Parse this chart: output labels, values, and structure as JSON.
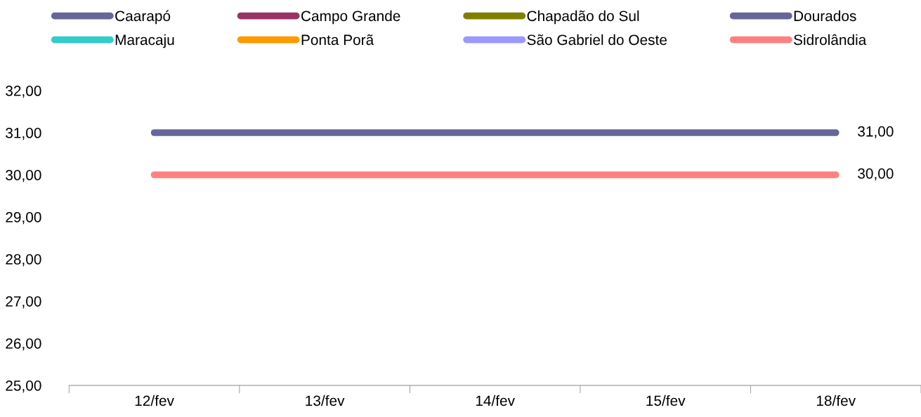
{
  "chart_data": {
    "type": "line",
    "categories": [
      "12/fev",
      "13/fev",
      "14/fev",
      "15/fev",
      "18/fev"
    ],
    "series": [
      {
        "name": "Caarapó",
        "color": "#666699",
        "values": [
          null,
          null,
          null,
          null,
          null
        ]
      },
      {
        "name": "Campo Grande",
        "color": "#993366",
        "values": [
          null,
          null,
          null,
          null,
          null
        ]
      },
      {
        "name": "Chapadão do Sul",
        "color": "#808000",
        "values": [
          null,
          null,
          null,
          null,
          null
        ]
      },
      {
        "name": "Dourados",
        "color": "#666699",
        "values": [
          31,
          31,
          31,
          31,
          31
        ],
        "value_labels": [
          null,
          null,
          null,
          null,
          "31,00"
        ]
      },
      {
        "name": "Maracaju",
        "color": "#33cccc",
        "values": [
          null,
          null,
          null,
          null,
          null
        ]
      },
      {
        "name": "Ponta Porã",
        "color": "#ff9900",
        "values": [
          null,
          null,
          null,
          null,
          null
        ]
      },
      {
        "name": "São Gabriel do Oeste",
        "color": "#9999ff",
        "values": [
          null,
          null,
          null,
          null,
          null
        ]
      },
      {
        "name": "Sidrolândia",
        "color": "#ff8080",
        "values": [
          30,
          30,
          30,
          30,
          30
        ],
        "value_labels": [
          null,
          null,
          null,
          null,
          "30,00"
        ]
      }
    ],
    "ylim": [
      25,
      32
    ],
    "yticks": [
      {
        "value": 25,
        "label": "25,00"
      },
      {
        "value": 26,
        "label": "26,00"
      },
      {
        "value": 27,
        "label": "27,00"
      },
      {
        "value": 28,
        "label": "28,00"
      },
      {
        "value": 29,
        "label": "29,00"
      },
      {
        "value": 30,
        "label": "30,00"
      },
      {
        "value": 31,
        "label": "31,00"
      },
      {
        "value": 32,
        "label": "32,00"
      }
    ],
    "grid": false,
    "legend": "top",
    "marker": "none",
    "line_style": "solid"
  }
}
